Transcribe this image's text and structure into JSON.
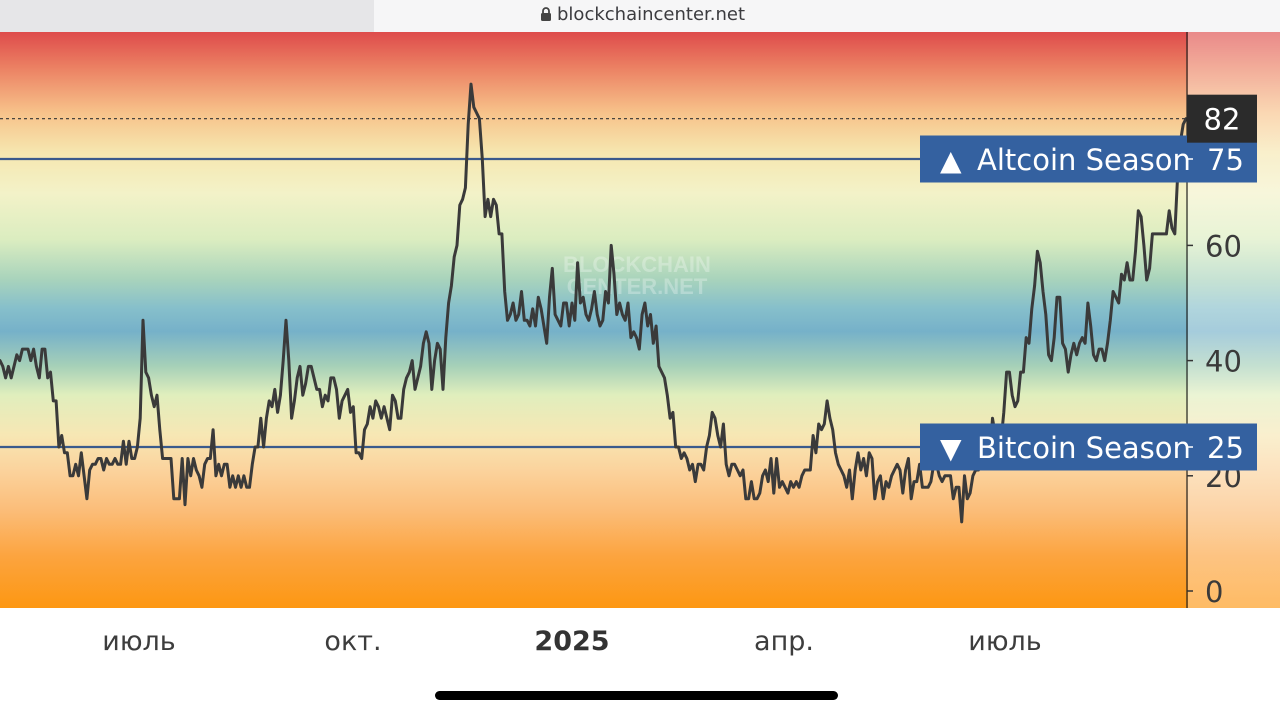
{
  "browser": {
    "url": "blockchaincenter.net"
  },
  "chart_data": {
    "type": "line",
    "title": "",
    "xlabel": "",
    "ylabel": "",
    "ylim": [
      0,
      100
    ],
    "x_tick_labels": [
      "июль",
      "окт.",
      "2025",
      "апр.",
      "июль"
    ],
    "y_ticks": [
      0,
      20,
      40,
      60
    ],
    "current_value": 82,
    "thresholds": [
      {
        "label": "Altcoin Season",
        "value": 75,
        "symbol": "▲"
      },
      {
        "label": "Bitcoin Season",
        "value": 25,
        "symbol": "▼"
      }
    ],
    "watermark": "BLOCKCHAIN CENTER.NET",
    "series": [
      {
        "values": [
          40,
          39,
          37,
          39,
          37,
          39,
          41,
          40,
          42,
          42,
          42,
          40,
          42,
          39,
          37,
          42,
          42,
          37,
          38,
          33,
          33,
          25,
          27,
          24,
          24,
          20,
          20,
          22,
          20,
          24,
          20,
          16,
          21,
          22,
          22,
          23,
          23,
          21,
          23,
          22,
          22,
          23,
          22,
          22,
          26,
          22,
          26,
          23,
          23,
          25,
          30,
          47,
          38,
          37,
          34,
          32,
          34,
          28,
          23,
          23,
          23,
          23,
          16,
          16,
          16,
          23,
          15,
          23,
          20,
          23,
          21,
          20,
          18,
          22,
          23,
          23,
          28,
          20,
          22,
          20,
          22,
          22,
          18,
          20,
          18,
          20,
          18,
          20,
          18,
          18,
          22,
          25,
          25,
          30,
          25,
          30,
          33,
          32,
          35,
          31,
          34,
          40,
          47,
          40,
          30,
          33,
          37,
          39,
          34,
          36,
          39,
          39,
          37,
          35,
          35,
          32,
          34,
          33,
          37,
          37,
          35,
          30,
          33,
          34,
          35,
          31,
          32,
          24,
          24,
          23,
          28,
          29,
          32,
          30,
          33,
          32,
          30,
          32,
          30,
          28,
          34,
          33,
          30,
          30,
          35,
          37,
          38,
          40,
          35,
          37,
          39,
          43,
          45,
          43,
          35,
          40,
          43,
          42,
          35,
          44,
          50,
          53,
          58,
          60,
          67,
          68,
          70,
          81,
          88,
          84,
          83,
          82,
          75,
          65,
          68,
          65,
          68,
          67,
          62,
          62,
          52,
          47,
          48,
          50,
          47,
          48,
          52,
          47,
          47,
          46,
          49,
          46,
          51,
          49,
          46,
          43,
          51,
          56,
          48,
          47,
          46,
          50,
          50,
          46,
          50,
          47,
          57,
          50,
          51,
          48,
          47,
          49,
          52,
          48,
          46,
          47,
          52,
          50,
          60,
          55,
          48,
          50,
          48,
          47,
          50,
          44,
          45,
          44,
          42,
          48,
          50,
          46,
          48,
          43,
          46,
          39,
          38,
          37,
          34,
          30,
          31,
          25,
          25,
          23,
          24,
          23,
          21,
          22,
          19,
          22,
          22,
          21,
          25,
          27,
          31,
          30,
          27,
          25,
          29,
          22,
          20,
          22,
          22,
          21,
          20,
          21,
          16,
          16,
          19,
          16,
          16,
          17,
          20,
          21,
          19,
          23,
          17,
          23,
          18,
          19,
          18,
          17,
          19,
          18,
          19,
          18,
          20,
          21,
          21,
          21,
          27,
          24,
          29,
          28,
          29,
          33,
          30,
          28,
          24,
          22,
          21,
          20,
          18,
          21,
          16,
          21,
          24,
          21,
          23,
          20,
          24,
          23,
          16,
          19,
          20,
          16,
          19,
          18,
          20,
          21,
          22,
          21,
          17,
          21,
          23,
          16,
          19,
          19,
          22,
          18,
          18,
          18,
          19,
          22,
          22,
          20,
          19,
          20,
          20,
          20,
          16,
          18,
          18,
          12,
          20,
          16,
          17,
          20,
          21,
          21,
          23,
          22,
          25,
          23,
          30,
          27,
          24,
          26,
          31,
          38,
          38,
          34,
          32,
          33,
          38,
          38,
          44,
          43,
          49,
          53,
          59,
          57,
          52,
          48,
          41,
          40,
          44,
          51,
          51,
          43,
          42,
          38,
          41,
          43,
          41,
          43,
          44,
          43,
          50,
          46,
          41,
          40,
          42,
          42,
          40,
          43,
          47,
          52,
          51,
          50,
          55,
          54,
          57,
          54,
          54,
          59,
          66,
          65,
          60,
          54,
          56,
          62,
          62,
          62,
          62,
          62,
          62,
          66,
          63,
          62,
          72,
          78,
          81,
          82
        ]
      }
    ]
  }
}
